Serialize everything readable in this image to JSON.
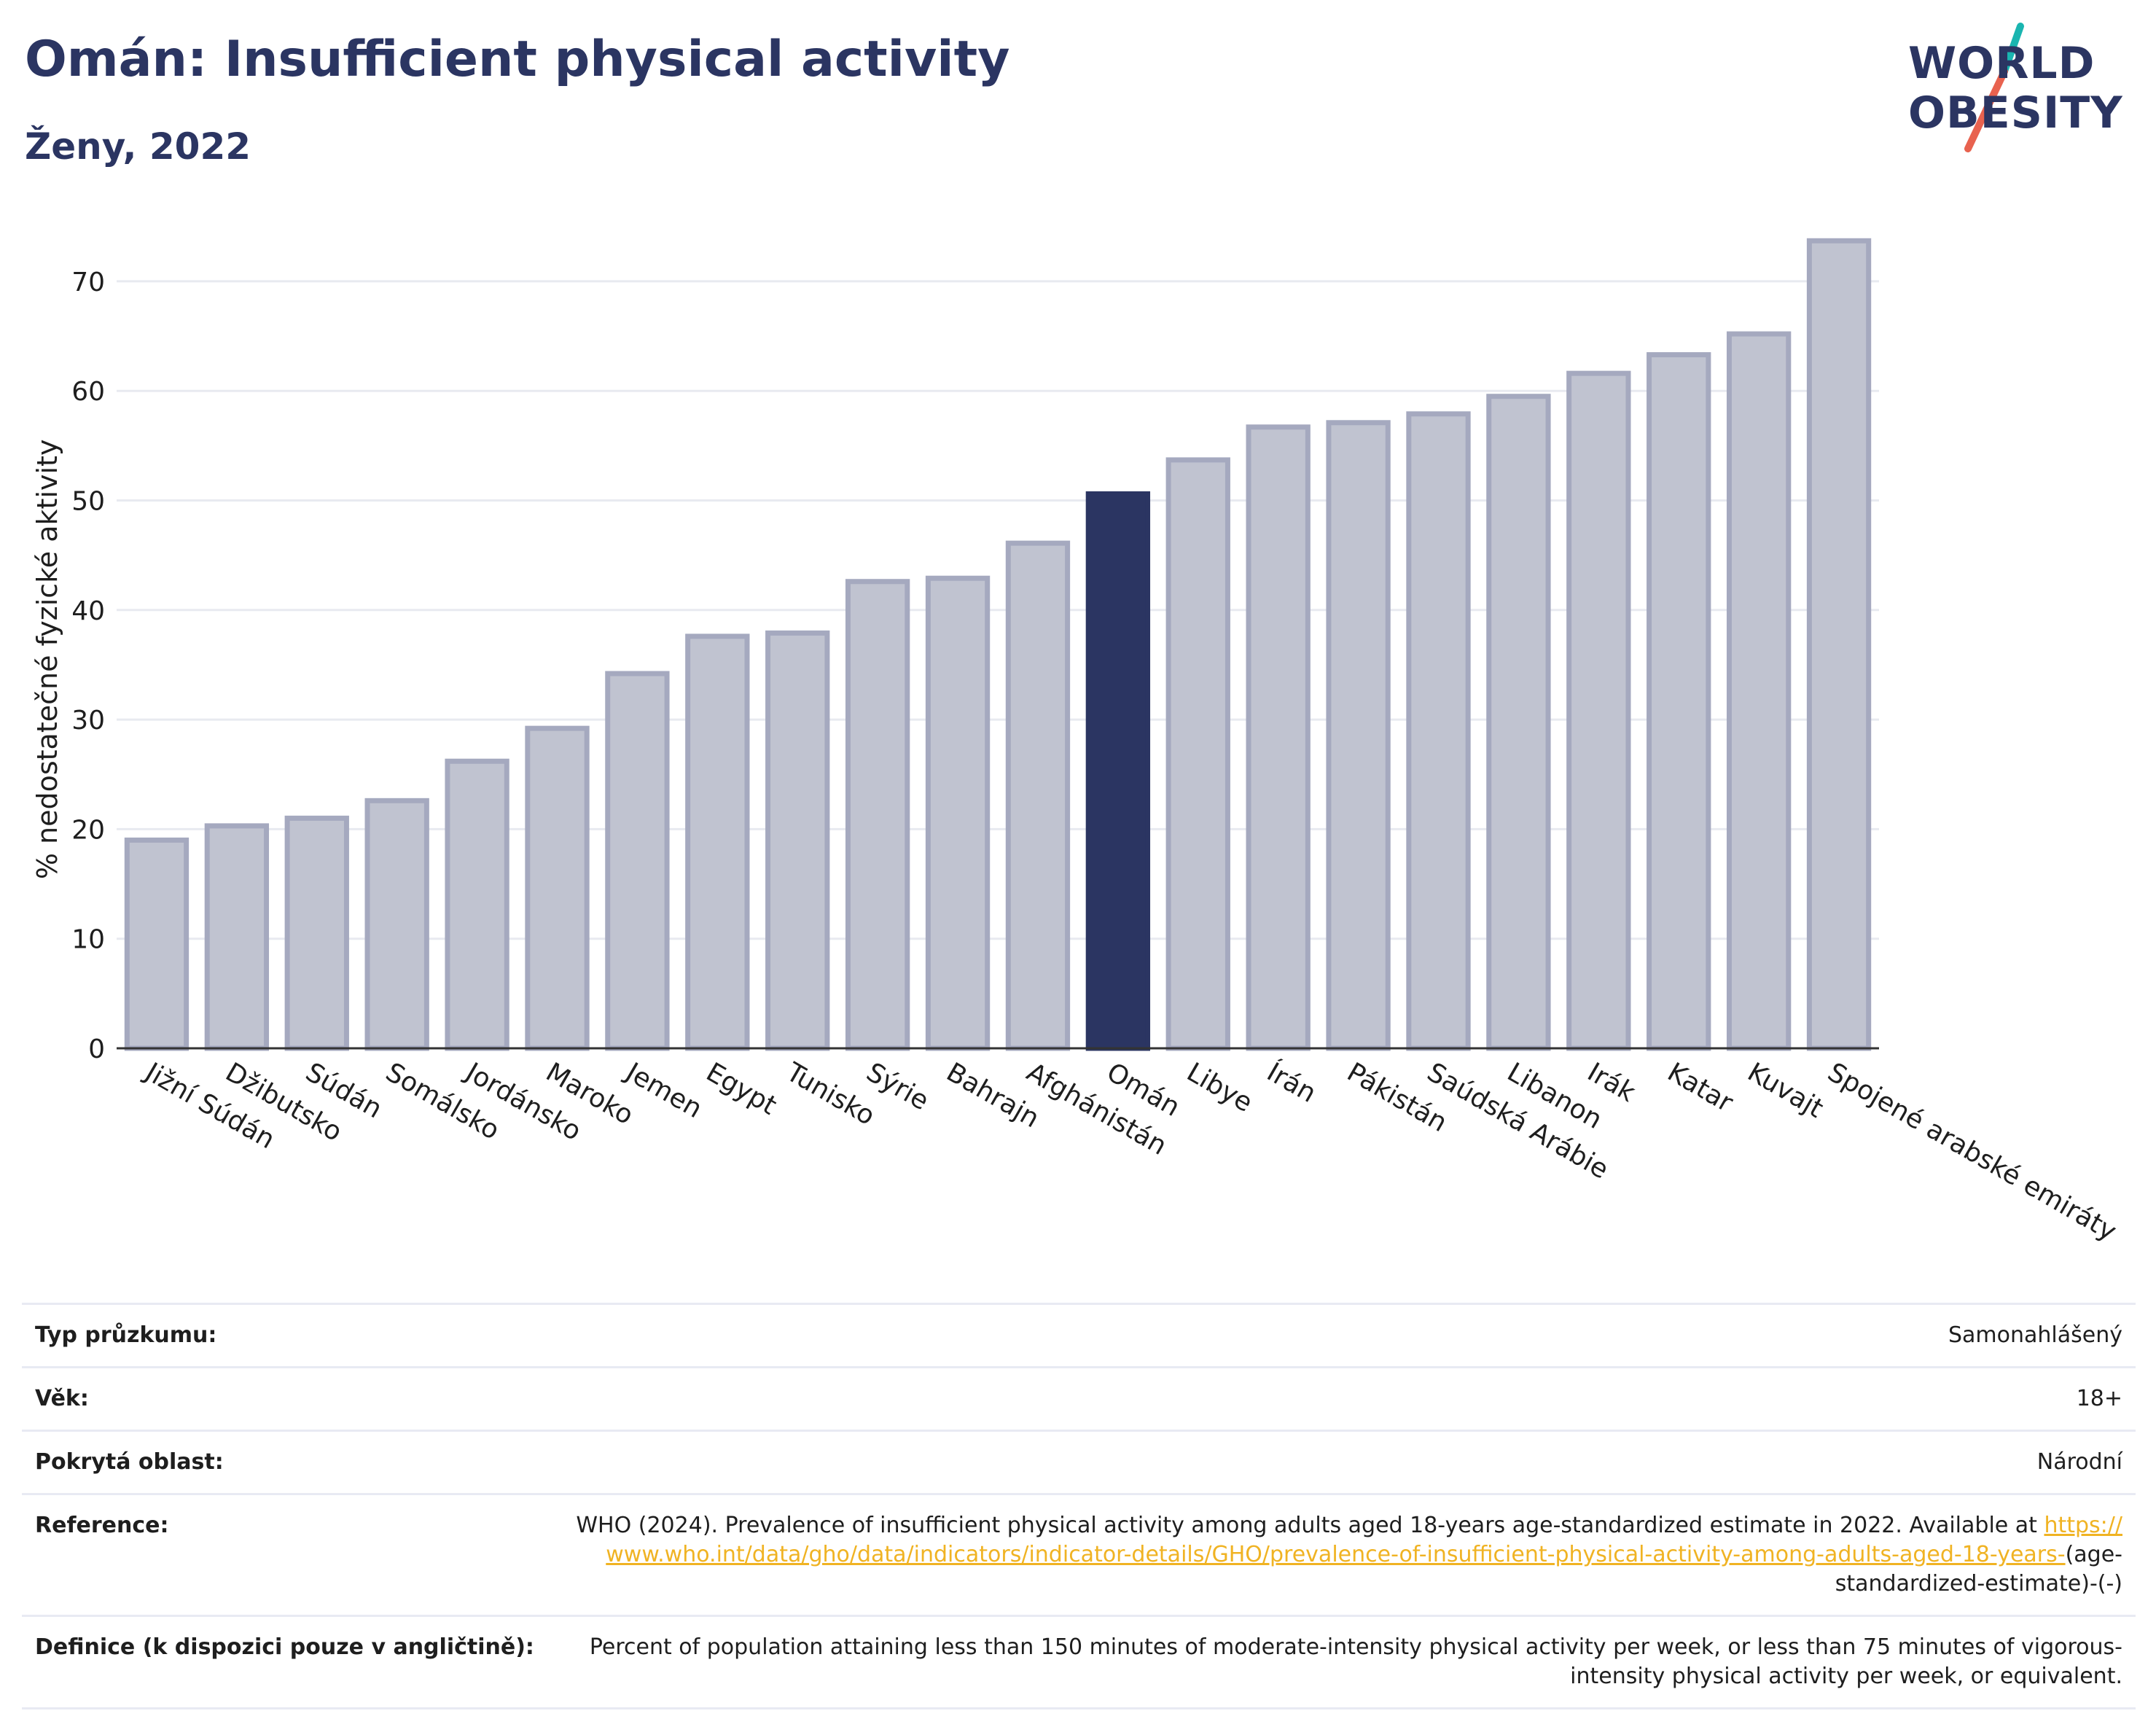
{
  "header": {
    "title": "Omán: Insufficient physical activity",
    "subtitle": "Ženy, 2022"
  },
  "logo": {
    "line1": "WORLD",
    "line2": "OBESITY",
    "colors": {
      "text": "#2b3562",
      "slash_top": "#1ab5b0",
      "slash_bottom": "#e8624f"
    }
  },
  "chart_data": {
    "type": "bar",
    "title": "Omán: Insufficient physical activity",
    "subtitle": "Ženy, 2022",
    "ylabel": "% nedostatečné fyzické aktivity",
    "xlabel": "",
    "ylim": [
      0,
      75
    ],
    "yticks": [
      0,
      10,
      20,
      30,
      40,
      50,
      60,
      70
    ],
    "grid": true,
    "highlight": "Omán",
    "colors": {
      "bar": "#c0c3d0",
      "bar_border": "#a5a9bf",
      "highlight": "#2b3562",
      "grid": "#e8eaf0",
      "axis": "#333333"
    },
    "categories": [
      "Jižní Súdán",
      "Džibutsko",
      "Súdán",
      "Somálsko",
      "Jordánsko",
      "Maroko",
      "Jemen",
      "Egypt",
      "Tunisko",
      "Sýrie",
      "Bahrajn",
      "Afghánistán",
      "Omán",
      "Libye",
      "Írán",
      "Pákistán",
      "Saúdská Arábie",
      "Libanon",
      "Irák",
      "Katar",
      "Kuvajt",
      "Spojené arabské emiráty"
    ],
    "values": [
      19.0,
      20.3,
      21.0,
      22.6,
      26.2,
      29.2,
      34.2,
      37.6,
      37.9,
      42.6,
      42.9,
      46.1,
      50.6,
      53.7,
      56.7,
      57.1,
      57.9,
      59.5,
      61.6,
      63.3,
      65.2,
      73.7
    ]
  },
  "info": {
    "rows": [
      {
        "label": "Typ průzkumu:",
        "value": "Samonahlášený"
      },
      {
        "label": "Věk:",
        "value": "18+"
      },
      {
        "label": "Pokrytá oblast:",
        "value": "Národní"
      }
    ],
    "reference": {
      "label": "Reference:",
      "text_before": "WHO (2024). Prevalence of insufficient physical activity among adults aged 18-years age-standardized estimate in 2022. Available at ",
      "link": "https://www.who.int/data/gho/data/indicators/indicator-details/GHO/prevalence-of-insufficient-physical-activity-among-adults-aged-18-years-",
      "text_after": "(age-standardized-estimate)-(-)"
    },
    "definition": {
      "label": "Definice (k dispozici pouze v angličtině):",
      "value": "Percent of population attaining less than 150 minutes of moderate-intensity physical activity per week, or less than 75 minutes of vigorous-intensity physical activity per week, or equivalent."
    }
  }
}
